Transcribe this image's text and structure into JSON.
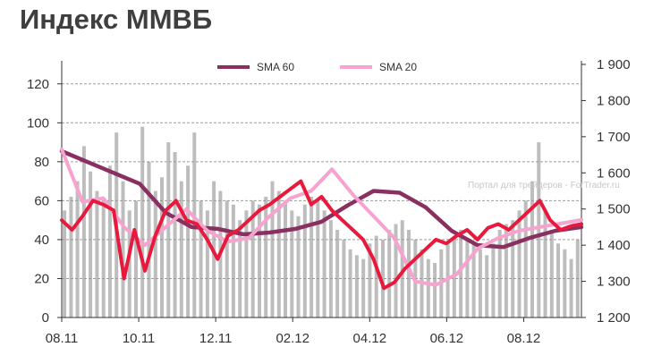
{
  "title": "Индекс ММВБ",
  "watermark": "Портал для трейдеров - ForTrader.ru",
  "colors": {
    "index": "#e8193c",
    "sma60": "#8a3060",
    "sma20": "#f7a3cf",
    "volume": "#bdbdbd",
    "grid": "#9a9a9a",
    "axis": "#333333"
  },
  "chart_data": {
    "type": "line",
    "x_ticks": [
      "08.11",
      "10.11",
      "12.11",
      "02.12",
      "04.12",
      "06.12",
      "08.12"
    ],
    "left_axis": {
      "ticks": [
        0,
        20,
        40,
        60,
        80,
        100,
        120
      ],
      "range": [
        0,
        130
      ]
    },
    "right_axis": {
      "ticks": [
        "1 200",
        "1 300",
        "1 400",
        "1 500",
        "1 600",
        "1 700",
        "1 800",
        "1 900"
      ],
      "range": [
        1200,
        1900
      ]
    },
    "grid": "horizontal dashed",
    "legend": {
      "position": "top-center",
      "entries": [
        "SMA 60",
        "SMA 20"
      ]
    },
    "series": [
      {
        "name": "SMA 60",
        "axis": "right",
        "t": [
          0,
          0.05,
          0.1,
          0.15,
          0.2,
          0.25,
          0.3,
          0.35,
          0.4,
          0.45,
          0.5,
          0.55,
          0.6,
          0.65,
          0.7,
          0.75,
          0.8,
          0.85,
          0.9,
          0.95,
          1.0
        ],
        "values": [
          1660,
          1630,
          1600,
          1570,
          1490,
          1450,
          1445,
          1430,
          1435,
          1445,
          1465,
          1510,
          1550,
          1545,
          1505,
          1440,
          1400,
          1395,
          1420,
          1440,
          1450
        ]
      },
      {
        "name": "SMA 20",
        "axis": "right",
        "t": [
          0,
          0.04,
          0.08,
          0.12,
          0.16,
          0.2,
          0.24,
          0.28,
          0.32,
          0.36,
          0.4,
          0.44,
          0.48,
          0.52,
          0.56,
          0.6,
          0.64,
          0.68,
          0.72,
          0.76,
          0.8,
          0.84,
          0.88,
          0.92,
          0.96,
          1.0
        ],
        "values": [
          1665,
          1520,
          1530,
          1450,
          1400,
          1450,
          1500,
          1440,
          1410,
          1420,
          1480,
          1530,
          1550,
          1610,
          1540,
          1480,
          1420,
          1300,
          1290,
          1320,
          1390,
          1420,
          1440,
          1450,
          1460,
          1470
        ]
      },
      {
        "name": "",
        "axis": "left",
        "t": [
          0,
          0.02,
          0.04,
          0.06,
          0.08,
          0.1,
          0.12,
          0.14,
          0.16,
          0.18,
          0.2,
          0.22,
          0.24,
          0.26,
          0.28,
          0.3,
          0.32,
          0.34,
          0.36,
          0.38,
          0.4,
          0.42,
          0.44,
          0.46,
          0.48,
          0.5,
          0.52,
          0.54,
          0.56,
          0.58,
          0.6,
          0.62,
          0.64,
          0.66,
          0.68,
          0.7,
          0.72,
          0.74,
          0.76,
          0.78,
          0.8,
          0.82,
          0.84,
          0.86,
          0.88,
          0.9,
          0.92,
          0.94,
          0.96,
          0.98,
          1.0
        ],
        "values": [
          50,
          45,
          52,
          60,
          58,
          55,
          20,
          45,
          24,
          42,
          55,
          60,
          50,
          48,
          40,
          30,
          42,
          45,
          50,
          55,
          58,
          62,
          66,
          70,
          58,
          62,
          55,
          50,
          45,
          40,
          30,
          15,
          18,
          25,
          30,
          35,
          40,
          38,
          42,
          45,
          40,
          46,
          48,
          45,
          50,
          55,
          60,
          50,
          45,
          47,
          48
        ]
      }
    ],
    "volume": {
      "axis": "left",
      "description": "grey vertical bars",
      "values": [
        55,
        62,
        70,
        88,
        75,
        65,
        60,
        78,
        95,
        70,
        55,
        60,
        98,
        80,
        65,
        72,
        90,
        85,
        70,
        78,
        95,
        60,
        55,
        70,
        65,
        60,
        58,
        50,
        55,
        60,
        58,
        62,
        70,
        65,
        60,
        55,
        52,
        58,
        62,
        60,
        55,
        50,
        45,
        40,
        35,
        32,
        30,
        38,
        42,
        40,
        45,
        48,
        50,
        45,
        40,
        35,
        30,
        28,
        35,
        38,
        42,
        45,
        40,
        38,
        35,
        32,
        38,
        45,
        48,
        50,
        55,
        60,
        70,
        90,
        55,
        45,
        38,
        35,
        30,
        40
      ]
    }
  }
}
